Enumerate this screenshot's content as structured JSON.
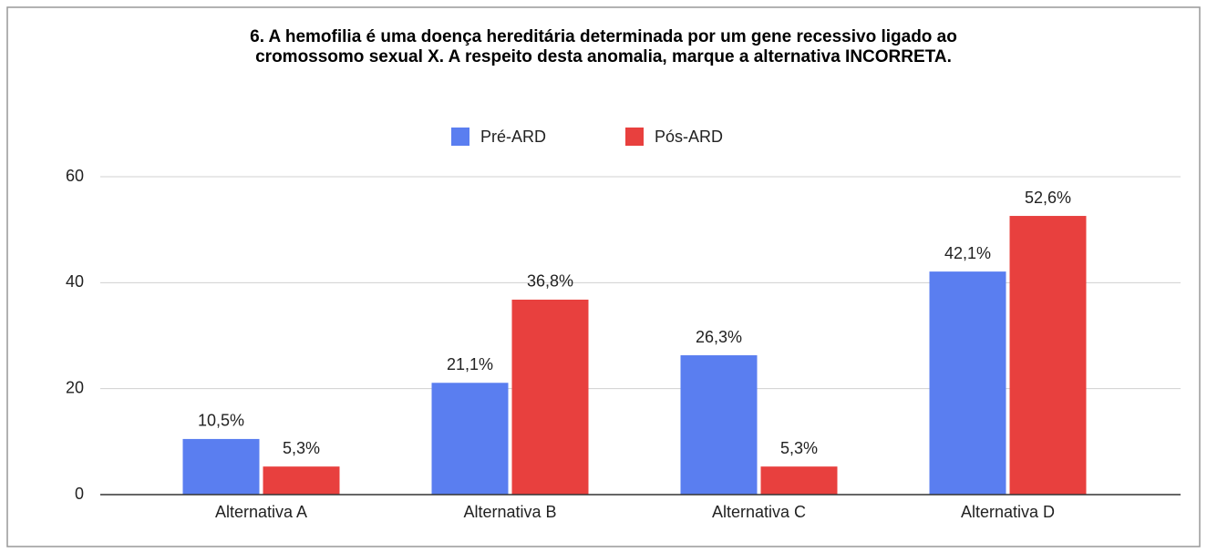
{
  "chart_data": {
    "type": "bar",
    "title": [
      "6. A hemofilia é uma doença hereditária determinada por um gene recessivo ligado ao",
      "cromossomo sexual X. A respeito desta anomalia, marque a alternativa INCORRETA."
    ],
    "categories": [
      "Alternativa A",
      "Alternativa B",
      "Alternativa C",
      "Alternativa D"
    ],
    "series": [
      {
        "name": "Pré-ARD",
        "color": "#5a7ef0",
        "values": [
          10.5,
          21.1,
          26.3,
          42.1
        ],
        "value_labels": [
          "10,5%",
          "21,1%",
          "26,3%",
          "42,1%"
        ]
      },
      {
        "name": "Pós-ARD",
        "color": "#e8403e",
        "values": [
          5.3,
          36.8,
          5.3,
          52.6
        ],
        "value_labels": [
          "5,3%",
          "36,8%",
          "5,3%",
          "52,6%"
        ]
      }
    ],
    "ylim": [
      0,
      60
    ],
    "yticks": [
      0,
      20,
      40,
      60
    ],
    "grid": true,
    "legend": "top"
  }
}
